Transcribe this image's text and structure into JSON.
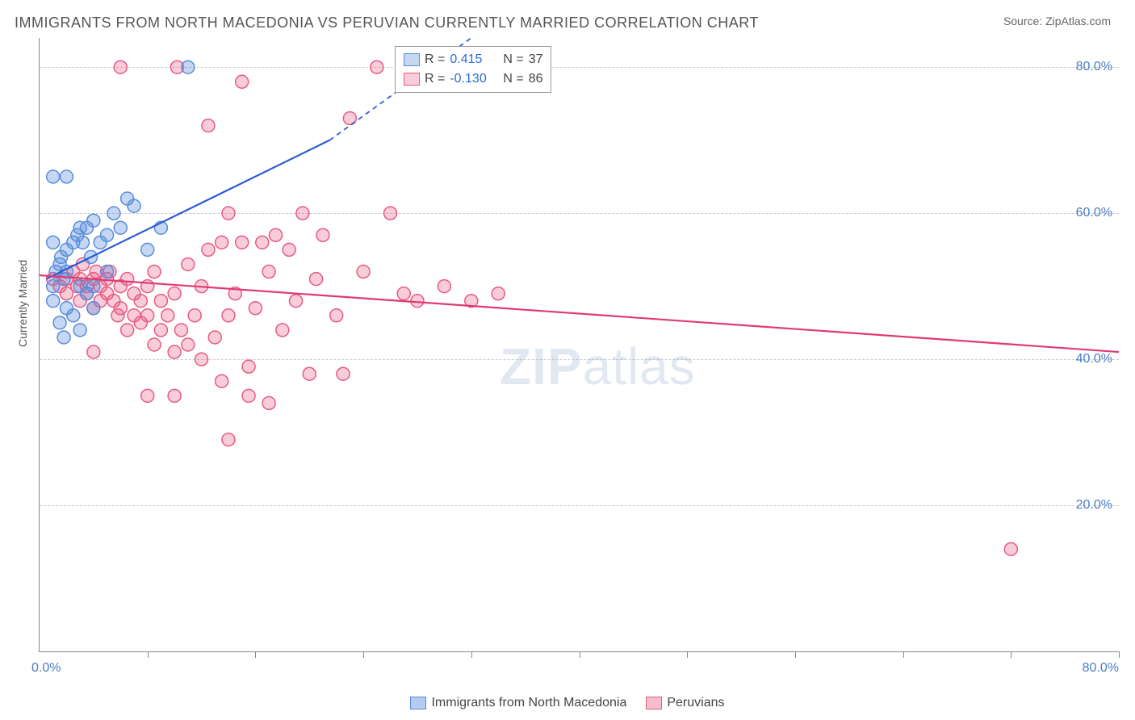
{
  "header": {
    "title": "IMMIGRANTS FROM NORTH MACEDONIA VS PERUVIAN CURRENTLY MARRIED CORRELATION CHART",
    "source_label": "Source: ",
    "source_value": "ZipAtlas.com"
  },
  "chart": {
    "type": "scatter",
    "ylabel": "Currently Married",
    "watermark": "ZIPatlas",
    "xlim": [
      0,
      80
    ],
    "ylim": [
      0,
      84
    ],
    "background_color": "#ffffff",
    "grid_color": "#cccccc",
    "axis_color": "#888888",
    "tick_label_color": "#4a7bc8",
    "tick_fontsize": 16,
    "ylabel_fontsize": 14,
    "y_gridlines": [
      20,
      40,
      60,
      80
    ],
    "y_tick_labels": [
      "20.0%",
      "40.0%",
      "60.0%",
      "80.0%"
    ],
    "x_tick_positions": [
      8,
      16,
      24,
      32,
      40,
      48,
      56,
      64,
      72,
      80
    ],
    "corner_label_bl": "0.0%",
    "corner_label_br": "80.0%",
    "marker_radius": 8,
    "marker_stroke_width": 1.5,
    "series": [
      {
        "name": "Immigrants from North Macedonia",
        "fill_color": "rgba(90,140,220,0.35)",
        "stroke_color": "#5a8cdc",
        "r_value": "0.415",
        "n_value": "37",
        "points": [
          [
            1,
            48
          ],
          [
            1,
            50
          ],
          [
            1.2,
            52
          ],
          [
            1.5,
            53
          ],
          [
            1.8,
            51
          ],
          [
            1.6,
            54
          ],
          [
            2,
            52
          ],
          [
            2,
            55
          ],
          [
            2.5,
            56
          ],
          [
            2.8,
            57
          ],
          [
            3,
            50
          ],
          [
            3,
            58
          ],
          [
            3.2,
            56
          ],
          [
            3.5,
            58
          ],
          [
            3.8,
            54
          ],
          [
            4,
            59
          ],
          [
            1,
            65
          ],
          [
            2,
            65
          ],
          [
            4.5,
            56
          ],
          [
            5,
            57
          ],
          [
            5.5,
            60
          ],
          [
            6,
            58
          ],
          [
            6.5,
            62
          ],
          [
            7,
            61
          ],
          [
            1.5,
            45
          ],
          [
            2,
            47
          ],
          [
            2.5,
            46
          ],
          [
            3,
            44
          ],
          [
            3.5,
            49
          ],
          [
            4,
            47
          ],
          [
            8,
            55
          ],
          [
            9,
            58
          ],
          [
            5,
            52
          ],
          [
            4,
            50
          ],
          [
            11,
            80
          ],
          [
            1,
            56
          ],
          [
            1.8,
            43
          ]
        ],
        "trend": {
          "solid": {
            "x1": 0.5,
            "y1": 51,
            "x2": 21.5,
            "y2": 70
          },
          "dashed": {
            "x1": 21.5,
            "y1": 70,
            "x2": 32,
            "y2": 84
          },
          "color": "#2b5cd0",
          "width": 2.2
        }
      },
      {
        "name": "Peruvians",
        "fill_color": "rgba(232,90,130,0.30)",
        "stroke_color": "#e85a82",
        "r_value": "-0.130",
        "n_value": "86",
        "points": [
          [
            1,
            51
          ],
          [
            1.5,
            50
          ],
          [
            2,
            51
          ],
          [
            2,
            49
          ],
          [
            2.5,
            52
          ],
          [
            2.8,
            50
          ],
          [
            3,
            51
          ],
          [
            3,
            48
          ],
          [
            3.2,
            53
          ],
          [
            3.5,
            50
          ],
          [
            3.5,
            49
          ],
          [
            4,
            51
          ],
          [
            4,
            47
          ],
          [
            4.2,
            52
          ],
          [
            4.5,
            50
          ],
          [
            4.5,
            48
          ],
          [
            5,
            51
          ],
          [
            5,
            49
          ],
          [
            5.2,
            52
          ],
          [
            5.5,
            48
          ],
          [
            5.8,
            46
          ],
          [
            6,
            50
          ],
          [
            6,
            47
          ],
          [
            6.5,
            51
          ],
          [
            6.5,
            44
          ],
          [
            7,
            49
          ],
          [
            7,
            46
          ],
          [
            7.5,
            48
          ],
          [
            7.5,
            45
          ],
          [
            8,
            50
          ],
          [
            8,
            46
          ],
          [
            8.5,
            52
          ],
          [
            8.5,
            42
          ],
          [
            9,
            48
          ],
          [
            9,
            44
          ],
          [
            9.5,
            46
          ],
          [
            10,
            49
          ],
          [
            10,
            41
          ],
          [
            10.2,
            80
          ],
          [
            10.5,
            44
          ],
          [
            11,
            53
          ],
          [
            11,
            42
          ],
          [
            11.5,
            46
          ],
          [
            12,
            50
          ],
          [
            12,
            40
          ],
          [
            12.5,
            55
          ],
          [
            12.5,
            72
          ],
          [
            13,
            43
          ],
          [
            13.5,
            56
          ],
          [
            13.5,
            37
          ],
          [
            14,
            46
          ],
          [
            14,
            60
          ],
          [
            14.5,
            49
          ],
          [
            15,
            78
          ],
          [
            15,
            56
          ],
          [
            15.5,
            39
          ],
          [
            15.5,
            35
          ],
          [
            16,
            47
          ],
          [
            16.5,
            56
          ],
          [
            17,
            52
          ],
          [
            17,
            34
          ],
          [
            17.5,
            57
          ],
          [
            18,
            44
          ],
          [
            18.5,
            55
          ],
          [
            19,
            48
          ],
          [
            19.5,
            60
          ],
          [
            20,
            38
          ],
          [
            20.5,
            51
          ],
          [
            21,
            57
          ],
          [
            22,
            46
          ],
          [
            22.5,
            38
          ],
          [
            23,
            73
          ],
          [
            24,
            52
          ],
          [
            25,
            80
          ],
          [
            26,
            60
          ],
          [
            27,
            49
          ],
          [
            28,
            48
          ],
          [
            30,
            50
          ],
          [
            32,
            48
          ],
          [
            34,
            49
          ],
          [
            14,
            29
          ],
          [
            8,
            35
          ],
          [
            10,
            35
          ],
          [
            4,
            41
          ],
          [
            72,
            14
          ],
          [
            6,
            80
          ]
        ],
        "trend": {
          "solid": {
            "x1": 0,
            "y1": 51.5,
            "x2": 80,
            "y2": 41
          },
          "dashed": null,
          "color": "#e03a72",
          "width": 2.2
        }
      }
    ]
  },
  "legend_top": {
    "r_label": "R  =",
    "n_label": "N  =",
    "text_color": "#444444",
    "value_color_pos": "#2b6cd8",
    "value_color_neg": "#2b6cd8"
  },
  "legend_bottom": {
    "items": [
      {
        "label": "Immigrants from North Macedonia",
        "fill": "rgba(90,140,220,0.45)",
        "stroke": "#5a8cdc"
      },
      {
        "label": "Peruvians",
        "fill": "rgba(232,90,130,0.40)",
        "stroke": "#e85a82"
      }
    ]
  }
}
